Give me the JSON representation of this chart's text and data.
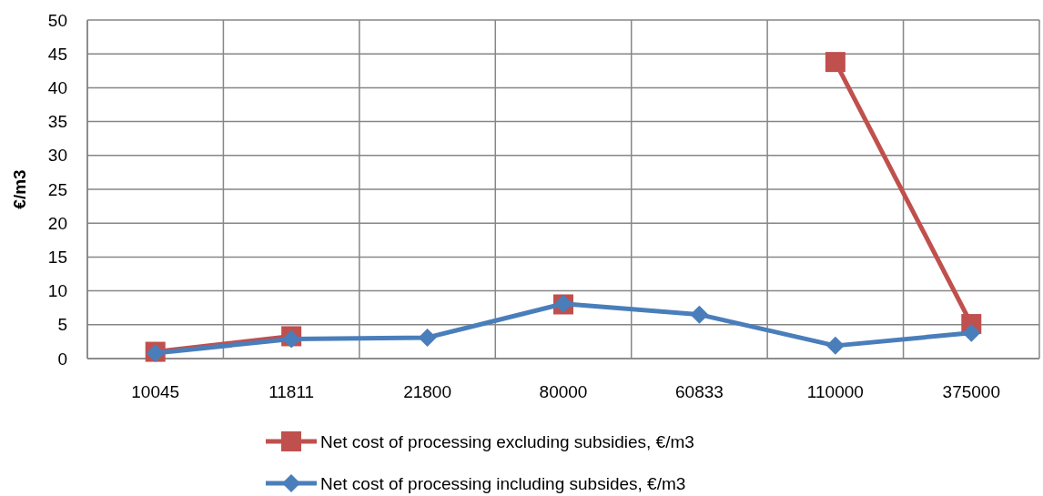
{
  "chart_data": {
    "type": "line",
    "ylabel": "€/m3",
    "categories": [
      "10045",
      "11811",
      "21800",
      "80000",
      "60833",
      "110000",
      "375000"
    ],
    "series": [
      {
        "name": "Net cost of processing excluding subsidies, €/m3",
        "color": "#c0504d",
        "marker": "square",
        "values": [
          1,
          3.3,
          null,
          8,
          null,
          43.8,
          5.1
        ]
      },
      {
        "name": "Net cost of processing including subsides, €/m3",
        "color": "#4a7ebb",
        "marker": "diamond",
        "values": [
          0.8,
          2.9,
          3.1,
          8.1,
          6.5,
          1.9,
          3.8
        ]
      }
    ],
    "ylim": [
      0,
      50
    ],
    "yticks": [
      0,
      5,
      10,
      15,
      20,
      25,
      30,
      35,
      40,
      45,
      50
    ],
    "grid": true,
    "legend": "bottom"
  }
}
